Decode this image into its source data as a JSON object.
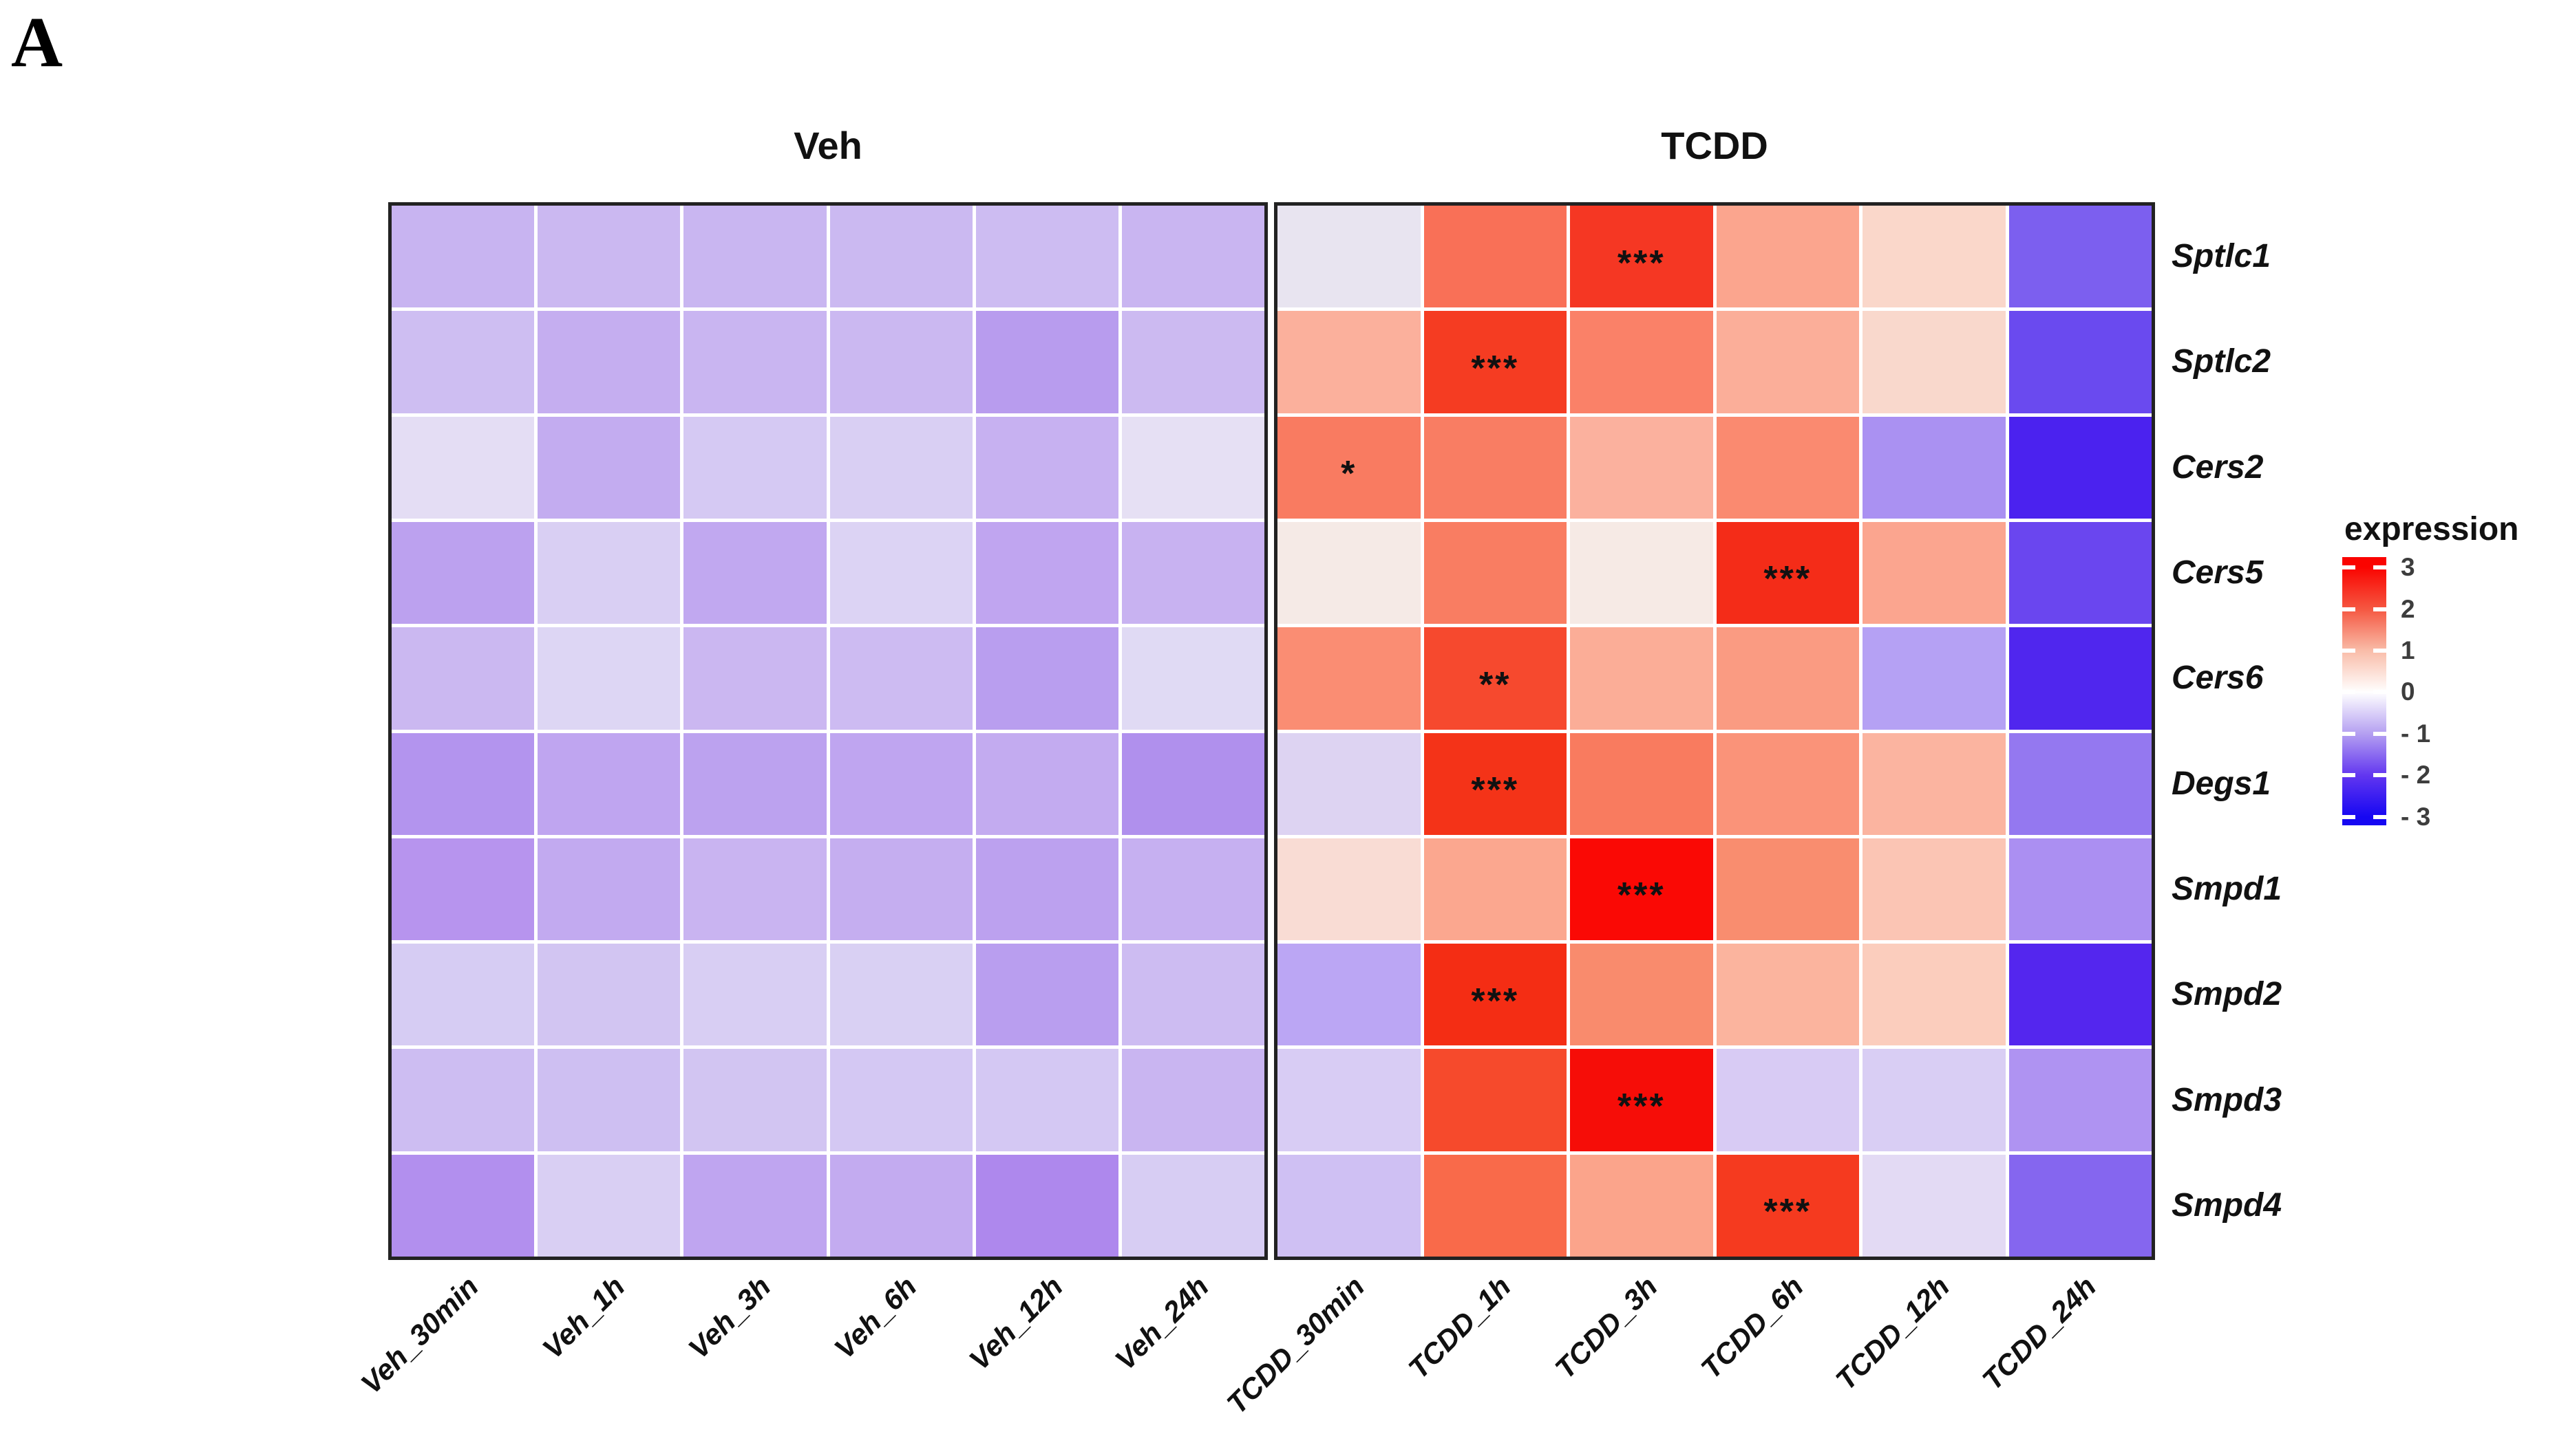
{
  "panel_label": "A",
  "legend": {
    "title": "expression",
    "ticks": [
      "3",
      "2",
      "1",
      "0",
      "- 1",
      "- 2",
      "- 3"
    ],
    "gradient_colors": [
      "#FA0400",
      "#F55741",
      "#F9BCA8",
      "#FFFFFF",
      "#B49FF1",
      "#6236F0",
      "#1607F2"
    ]
  },
  "heatmap": {
    "genes": [
      "Sptlc1",
      "Sptlc2",
      "Cers2",
      "Cers5",
      "Cers6",
      "Degs1",
      "Smpd1",
      "Smpd2",
      "Smpd3",
      "Smpd4"
    ],
    "groups": [
      {
        "title": "Veh",
        "columns": [
          "Veh_30min",
          "Veh_1h",
          "Veh_3h",
          "Veh_6h",
          "Veh_12h",
          "Veh_24h"
        ],
        "cell_colors": [
          [
            "#C8B4F1",
            "#CBB8F1",
            "#C9B6F1",
            "#CBB9F1",
            "#CDBCF2",
            "#C9B5F1"
          ],
          [
            "#CEBEF2",
            "#C5AEF0",
            "#C9B5F1",
            "#CBB8F1",
            "#B89CEE",
            "#CCBAF1"
          ],
          [
            "#E4DDF4",
            "#C3ACF0",
            "#D5C9F3",
            "#D9CFF3",
            "#C7B1F1",
            "#E6E0F4"
          ],
          [
            "#BCA1EF",
            "#D9CFF3",
            "#C1A8F0",
            "#DCD3F4",
            "#C0A5F0",
            "#C8B2F1"
          ],
          [
            "#CBB8F1",
            "#DDD6F4",
            "#CBB7F1",
            "#CDBBF2",
            "#B99EEF",
            "#E0DAF4"
          ],
          [
            "#B394EE",
            "#BFA5F0",
            "#BCA2EF",
            "#BFA5F0",
            "#C3ABF0",
            "#B090ED"
          ],
          [
            "#B794EE",
            "#C2AAF0",
            "#C9B4F1",
            "#C5AEF0",
            "#BCA1EF",
            "#C6B0F1"
          ],
          [
            "#D6CCF3",
            "#D2C5F2",
            "#D8CEF3",
            "#D9D0F3",
            "#B99EEF",
            "#CDBCF2"
          ],
          [
            "#CDBDF2",
            "#CEBFF2",
            "#D2C5F2",
            "#D4C8F3",
            "#D4C8F3",
            "#C9B5F1"
          ],
          [
            "#B28FEE",
            "#D9CFF3",
            "#BFA5F0",
            "#C3ABF0",
            "#AE88ED",
            "#D7CDF3"
          ]
        ],
        "stars": []
      },
      {
        "title": "TCDD",
        "columns": [
          "TCDD_30min",
          "TCDD_1h",
          "TCDD_3h",
          "TCDD_6h",
          "TCDD_12h",
          "TCDD_24h"
        ],
        "cell_colors": [
          [
            "#E8E4F0",
            "#F97057",
            "#F53723",
            "#FBA58E",
            "#FAD7CA",
            "#7C5FEF"
          ],
          [
            "#FBB09C",
            "#F53C22",
            "#FA8168",
            "#FBAE99",
            "#F9D8CC",
            "#6A4AEF"
          ],
          [
            "#F97B61",
            "#F97D63",
            "#FBB19E",
            "#FA8A70",
            "#AA91F2",
            "#4B22EF"
          ],
          [
            "#F5EAE6",
            "#F97D62",
            "#F6EAE5",
            "#F42C18",
            "#FBA58F",
            "#6A46EF"
          ],
          [
            "#FA8D73",
            "#F6492E",
            "#FBAD97",
            "#FA9B82",
            "#B5A1F4",
            "#5026EE"
          ],
          [
            "#DDD3F2",
            "#F43318",
            "#F97B5F",
            "#FA9379",
            "#FBB4A0",
            "#9478F0"
          ],
          [
            "#F9DCD4",
            "#FBA78F",
            "#FA0905",
            "#F98D6F",
            "#FBC5B4",
            "#AB8FF2"
          ],
          [
            "#BBA6F4",
            "#F42D14",
            "#F98B6D",
            "#FBB49E",
            "#FBCDBD",
            "#5426EE"
          ],
          [
            "#D8CCF4",
            "#F64A2C",
            "#F60D08",
            "#D8CBF4",
            "#D9CEF4",
            "#AF93F2"
          ],
          [
            "#CFC0F3",
            "#F96A4A",
            "#FBA48B",
            "#F53A1F",
            "#E3DAF4",
            "#8566EF"
          ]
        ],
        "stars": [
          {
            "row": 0,
            "col": 2,
            "text": "***"
          },
          {
            "row": 1,
            "col": 1,
            "text": "***"
          },
          {
            "row": 2,
            "col": 0,
            "text": "*"
          },
          {
            "row": 3,
            "col": 3,
            "text": "***"
          },
          {
            "row": 4,
            "col": 1,
            "text": "**"
          },
          {
            "row": 5,
            "col": 1,
            "text": "***"
          },
          {
            "row": 6,
            "col": 2,
            "text": "***"
          },
          {
            "row": 7,
            "col": 1,
            "text": "***"
          },
          {
            "row": 8,
            "col": 2,
            "text": "***"
          },
          {
            "row": 9,
            "col": 3,
            "text": "***"
          }
        ]
      }
    ]
  },
  "chart_data": {
    "type": "heatmap",
    "title_left": "Veh",
    "title_right": "TCDD",
    "rows": [
      "Sptlc1",
      "Sptlc2",
      "Cers2",
      "Cers5",
      "Cers6",
      "Degs1",
      "Smpd1",
      "Smpd2",
      "Smpd3",
      "Smpd4"
    ],
    "columns": [
      "Veh_30min",
      "Veh_1h",
      "Veh_3h",
      "Veh_6h",
      "Veh_12h",
      "Veh_24h",
      "TCDD_30min",
      "TCDD_1h",
      "TCDD_3h",
      "TCDD_6h",
      "TCDD_12h",
      "TCDD_24h"
    ],
    "legend_title": "expression",
    "value_range": [
      -3,
      3
    ],
    "colorscale": {
      "-3": "#1607F2",
      "0": "#FFFFFF",
      "3": "#FA0400"
    },
    "values": [
      [
        -0.6,
        -0.5,
        -0.55,
        -0.5,
        -0.45,
        -0.6,
        -0.1,
        1.7,
        2.6,
        1.1,
        0.5,
        -1.6
      ],
      [
        -0.45,
        -0.65,
        -0.6,
        -0.5,
        -0.9,
        -0.5,
        0.95,
        2.55,
        1.5,
        1.0,
        0.5,
        -1.9
      ],
      [
        -0.2,
        -0.7,
        -0.35,
        -0.3,
        -0.65,
        -0.2,
        1.6,
        1.55,
        0.9,
        1.4,
        -1.1,
        -2.4
      ],
      [
        -0.8,
        -0.3,
        -0.75,
        -0.27,
        -0.77,
        -0.6,
        0.15,
        1.55,
        0.15,
        2.7,
        1.1,
        -1.85
      ],
      [
        -0.55,
        -0.25,
        -0.56,
        -0.52,
        -0.85,
        -0.22,
        1.35,
        2.3,
        1.0,
        1.2,
        -0.95,
        -2.3
      ],
      [
        -0.95,
        -0.75,
        -0.8,
        -0.75,
        -0.7,
        -1.0,
        -0.4,
        2.6,
        1.6,
        1.3,
        0.85,
        -1.35
      ],
      [
        -0.9,
        -0.72,
        -0.6,
        -0.68,
        -0.8,
        -0.65,
        0.4,
        1.05,
        2.95,
        1.4,
        0.7,
        -1.05
      ],
      [
        -0.35,
        -0.4,
        -0.33,
        -0.3,
        -0.85,
        -0.45,
        -0.9,
        2.65,
        1.4,
        0.9,
        0.6,
        -2.2
      ],
      [
        -0.45,
        -0.43,
        -0.4,
        -0.37,
        -0.37,
        -0.6,
        -0.5,
        2.25,
        2.9,
        -0.5,
        -0.45,
        -1.3
      ],
      [
        -1.0,
        -0.3,
        -0.75,
        -0.7,
        -1.05,
        -0.33,
        -0.65,
        1.8,
        1.1,
        2.5,
        -0.35,
        -1.5
      ]
    ],
    "significance": [
      {
        "gene": "Sptlc1",
        "column": "TCDD_3h",
        "stars": "***"
      },
      {
        "gene": "Sptlc2",
        "column": "TCDD_1h",
        "stars": "***"
      },
      {
        "gene": "Cers2",
        "column": "TCDD_30min",
        "stars": "*"
      },
      {
        "gene": "Cers5",
        "column": "TCDD_6h",
        "stars": "***"
      },
      {
        "gene": "Cers6",
        "column": "TCDD_1h",
        "stars": "**"
      },
      {
        "gene": "Degs1",
        "column": "TCDD_1h",
        "stars": "***"
      },
      {
        "gene": "Smpd1",
        "column": "TCDD_3h",
        "stars": "***"
      },
      {
        "gene": "Smpd2",
        "column": "TCDD_1h",
        "stars": "***"
      },
      {
        "gene": "Smpd3",
        "column": "TCDD_3h",
        "stars": "***"
      },
      {
        "gene": "Smpd4",
        "column": "TCDD_6h",
        "stars": "***"
      }
    ],
    "legend_ticks": [
      3,
      2,
      1,
      0,
      -1,
      -2,
      -3
    ],
    "grid": "white 5px lines between cells",
    "legend_position": "right"
  }
}
